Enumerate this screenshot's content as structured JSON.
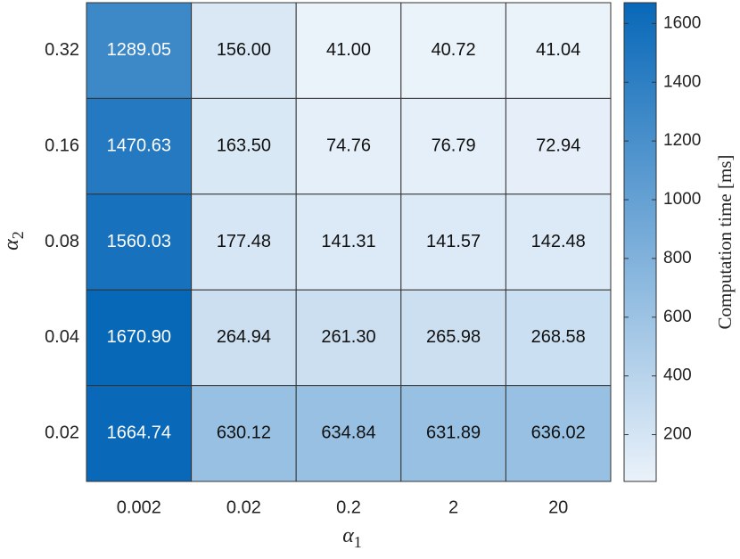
{
  "chart_data": {
    "type": "heatmap",
    "x": [
      "0.002",
      "0.02",
      "0.2",
      "2",
      "20"
    ],
    "y": [
      "0.32",
      "0.16",
      "0.08",
      "0.04",
      "0.02"
    ],
    "xlabel": {
      "symbol": "α",
      "subscript": "1"
    },
    "ylabel": {
      "symbol": "α",
      "subscript": "2"
    },
    "values": [
      [
        1289.05,
        156.0,
        41.0,
        40.72,
        41.04
      ],
      [
        1470.63,
        163.5,
        74.76,
        76.79,
        72.94
      ],
      [
        1560.03,
        177.48,
        141.31,
        141.57,
        142.48
      ],
      [
        1670.9,
        264.94,
        261.3,
        265.98,
        268.58
      ],
      [
        1664.74,
        630.12,
        634.84,
        631.89,
        636.02
      ]
    ],
    "value_labels": [
      [
        "1289.05",
        "156.00",
        "41.00",
        "40.72",
        "41.04"
      ],
      [
        "1470.63",
        "163.50",
        "74.76",
        "76.79",
        "72.94"
      ],
      [
        "1560.03",
        "177.48",
        "141.31",
        "141.57",
        "142.48"
      ],
      [
        "1670.90",
        "264.94",
        "261.30",
        "265.98",
        "268.58"
      ],
      [
        "1664.74",
        "630.12",
        "634.84",
        "631.89",
        "636.02"
      ]
    ],
    "colorbar_label": "Computation time [ms]",
    "clim": [
      40.72,
      1670.9
    ],
    "cticks": [
      200,
      400,
      600,
      800,
      1000,
      1200,
      1400,
      1600
    ],
    "cmap": [
      "#eaf2fa",
      "#0868b8"
    ]
  }
}
